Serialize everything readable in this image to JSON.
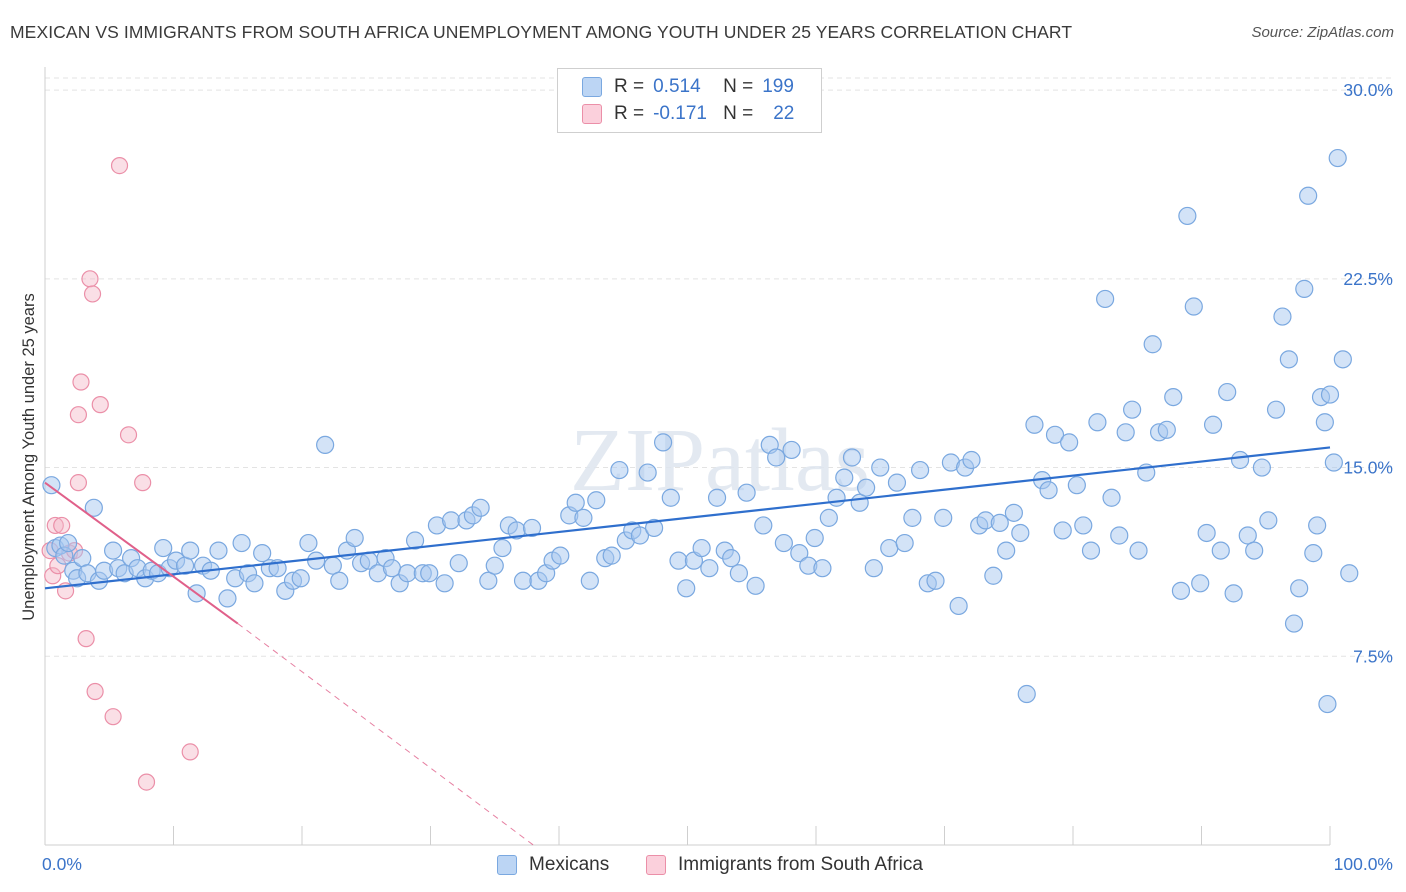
{
  "header": {
    "title": "MEXICAN VS IMMIGRANTS FROM SOUTH AFRICA UNEMPLOYMENT AMONG YOUTH UNDER 25 YEARS CORRELATION CHART",
    "source": "Source: ZipAtlas.com"
  },
  "watermark": "ZIPatlas",
  "legend": {
    "rows": [
      {
        "r_label": "R =",
        "r_value": "0.514",
        "n_label": "N =",
        "n_value": "199",
        "color": "#a8c8f0"
      },
      {
        "r_label": "R =",
        "r_value": "-0.171",
        "n_label": "N =",
        "n_value": "22",
        "color": "#f5b8c8"
      }
    ]
  },
  "bottom_legend": {
    "mexicans": "Mexicans",
    "immigrants": "Immigrants from South Africa"
  },
  "colors": {
    "blue_fill": "#a8c8f0",
    "blue_stroke": "#7aa8e0",
    "blue_line": "#2f6fcd",
    "pink_fill": "#f5b8c8",
    "pink_stroke": "#eb8fa8",
    "pink_line": "#e0608a",
    "tick_label": "#3b74c9",
    "grid": "#e3e3e3"
  },
  "chart_data": {
    "type": "scatter",
    "title": "MEXICAN VS IMMIGRANTS FROM SOUTH AFRICA UNEMPLOYMENT AMONG YOUTH UNDER 25 YEARS CORRELATION CHART",
    "xlabel": "",
    "ylabel": "Unemployment Among Youth under 25 years",
    "xlim": [
      0,
      100
    ],
    "ylim": [
      0,
      30.6
    ],
    "x_tick_labels": [
      "0.0%",
      "100.0%"
    ],
    "y_ticks": [
      7.5,
      15.0,
      22.5,
      30.0
    ],
    "y_tick_labels": [
      "7.5%",
      "15.0%",
      "22.5%",
      "30.0%"
    ],
    "grid": true,
    "legend_position": "top-center",
    "series": [
      {
        "name": "Mexicans",
        "color": "#a8c8f0",
        "trend": {
          "x": [
            0,
            100
          ],
          "y": [
            10.2,
            15.8
          ]
        },
        "points": [
          [
            0.5,
            14.3
          ],
          [
            0.8,
            11.8
          ],
          [
            1.2,
            11.9
          ],
          [
            1.5,
            11.5
          ],
          [
            1.8,
            12.0
          ],
          [
            2.2,
            10.9
          ],
          [
            2.5,
            10.6
          ],
          [
            2.9,
            11.4
          ],
          [
            3.3,
            10.8
          ],
          [
            3.8,
            13.4
          ],
          [
            4.2,
            10.5
          ],
          [
            4.6,
            10.9
          ],
          [
            5.3,
            11.7
          ],
          [
            5.7,
            11.0
          ],
          [
            6.2,
            10.8
          ],
          [
            6.7,
            11.4
          ],
          [
            7.2,
            11.0
          ],
          [
            7.8,
            10.6
          ],
          [
            8.3,
            10.9
          ],
          [
            8.8,
            10.8
          ],
          [
            9.2,
            11.8
          ],
          [
            9.7,
            11.0
          ],
          [
            10.2,
            11.3
          ],
          [
            10.9,
            11.1
          ],
          [
            11.3,
            11.7
          ],
          [
            11.8,
            10.0
          ],
          [
            12.3,
            11.1
          ],
          [
            12.9,
            10.9
          ],
          [
            13.5,
            11.7
          ],
          [
            14.2,
            9.8
          ],
          [
            14.8,
            10.6
          ],
          [
            15.3,
            12.0
          ],
          [
            15.8,
            10.8
          ],
          [
            16.3,
            10.4
          ],
          [
            16.9,
            11.6
          ],
          [
            17.5,
            11.0
          ],
          [
            18.1,
            11.0
          ],
          [
            18.7,
            10.1
          ],
          [
            19.3,
            10.5
          ],
          [
            19.9,
            10.6
          ],
          [
            20.5,
            12.0
          ],
          [
            21.1,
            11.3
          ],
          [
            21.8,
            15.9
          ],
          [
            22.4,
            11.1
          ],
          [
            22.9,
            10.5
          ],
          [
            23.5,
            11.7
          ],
          [
            24.1,
            12.2
          ],
          [
            24.6,
            11.2
          ],
          [
            25.2,
            11.3
          ],
          [
            25.9,
            10.8
          ],
          [
            26.5,
            11.4
          ],
          [
            27.0,
            11.0
          ],
          [
            27.6,
            10.4
          ],
          [
            28.2,
            10.8
          ],
          [
            28.8,
            12.1
          ],
          [
            29.4,
            10.8
          ],
          [
            29.9,
            10.8
          ],
          [
            30.5,
            12.7
          ],
          [
            31.1,
            10.4
          ],
          [
            31.6,
            12.9
          ],
          [
            32.2,
            11.2
          ],
          [
            32.8,
            12.9
          ],
          [
            33.3,
            13.1
          ],
          [
            33.9,
            13.4
          ],
          [
            34.5,
            10.5
          ],
          [
            35.0,
            11.1
          ],
          [
            35.6,
            11.8
          ],
          [
            36.1,
            12.7
          ],
          [
            36.7,
            12.5
          ],
          [
            37.2,
            10.5
          ],
          [
            37.9,
            12.6
          ],
          [
            38.4,
            10.5
          ],
          [
            39.0,
            10.8
          ],
          [
            39.5,
            11.3
          ],
          [
            40.1,
            11.5
          ],
          [
            40.8,
            13.1
          ],
          [
            41.3,
            13.6
          ],
          [
            41.9,
            13.0
          ],
          [
            42.4,
            10.5
          ],
          [
            42.9,
            13.7
          ],
          [
            43.6,
            11.4
          ],
          [
            44.1,
            11.5
          ],
          [
            44.7,
            14.9
          ],
          [
            45.2,
            12.1
          ],
          [
            45.7,
            12.5
          ],
          [
            46.3,
            12.3
          ],
          [
            46.9,
            14.8
          ],
          [
            47.4,
            12.6
          ],
          [
            48.1,
            16.0
          ],
          [
            48.7,
            13.8
          ],
          [
            49.3,
            11.3
          ],
          [
            49.9,
            10.2
          ],
          [
            50.5,
            11.3
          ],
          [
            51.1,
            11.8
          ],
          [
            51.7,
            11.0
          ],
          [
            52.3,
            13.8
          ],
          [
            52.9,
            11.7
          ],
          [
            53.4,
            11.4
          ],
          [
            54.0,
            10.8
          ],
          [
            54.6,
            14.0
          ],
          [
            55.3,
            10.3
          ],
          [
            55.9,
            12.7
          ],
          [
            56.4,
            15.9
          ],
          [
            56.9,
            15.4
          ],
          [
            57.5,
            12.0
          ],
          [
            58.1,
            15.7
          ],
          [
            58.7,
            11.6
          ],
          [
            59.4,
            11.1
          ],
          [
            59.9,
            12.2
          ],
          [
            60.5,
            11.0
          ],
          [
            61.0,
            13.0
          ],
          [
            61.6,
            13.8
          ],
          [
            62.2,
            14.6
          ],
          [
            62.8,
            15.4
          ],
          [
            63.4,
            13.6
          ],
          [
            63.9,
            14.2
          ],
          [
            64.5,
            11.0
          ],
          [
            65.0,
            15.0
          ],
          [
            65.7,
            11.8
          ],
          [
            66.3,
            14.4
          ],
          [
            66.9,
            12.0
          ],
          [
            67.5,
            13.0
          ],
          [
            68.1,
            14.9
          ],
          [
            68.7,
            10.4
          ],
          [
            69.3,
            10.5
          ],
          [
            69.9,
            13.0
          ],
          [
            70.5,
            15.2
          ],
          [
            71.1,
            9.5
          ],
          [
            71.6,
            15.0
          ],
          [
            72.1,
            15.3
          ],
          [
            72.7,
            12.7
          ],
          [
            73.2,
            12.9
          ],
          [
            73.8,
            10.7
          ],
          [
            74.3,
            12.8
          ],
          [
            74.8,
            11.7
          ],
          [
            75.4,
            13.2
          ],
          [
            75.9,
            12.4
          ],
          [
            76.4,
            6.0
          ],
          [
            77.0,
            16.7
          ],
          [
            77.6,
            14.5
          ],
          [
            78.1,
            14.1
          ],
          [
            78.6,
            16.3
          ],
          [
            79.2,
            12.5
          ],
          [
            79.7,
            16.0
          ],
          [
            80.3,
            14.3
          ],
          [
            80.8,
            12.7
          ],
          [
            81.4,
            11.7
          ],
          [
            81.9,
            16.8
          ],
          [
            82.5,
            21.7
          ],
          [
            83.0,
            13.8
          ],
          [
            83.6,
            12.3
          ],
          [
            84.1,
            16.4
          ],
          [
            84.6,
            17.3
          ],
          [
            85.1,
            11.7
          ],
          [
            85.7,
            14.8
          ],
          [
            86.2,
            19.9
          ],
          [
            86.7,
            16.4
          ],
          [
            87.3,
            16.5
          ],
          [
            87.8,
            17.8
          ],
          [
            88.4,
            10.1
          ],
          [
            88.9,
            25.0
          ],
          [
            89.4,
            21.4
          ],
          [
            89.9,
            10.4
          ],
          [
            90.4,
            12.4
          ],
          [
            90.9,
            16.7
          ],
          [
            91.5,
            11.7
          ],
          [
            92.0,
            18.0
          ],
          [
            92.5,
            10.0
          ],
          [
            93.0,
            15.3
          ],
          [
            93.6,
            12.3
          ],
          [
            94.1,
            11.7
          ],
          [
            94.7,
            15.0
          ],
          [
            95.2,
            12.9
          ],
          [
            95.8,
            17.3
          ],
          [
            96.3,
            21.0
          ],
          [
            96.8,
            19.3
          ],
          [
            97.2,
            8.8
          ],
          [
            97.6,
            10.2
          ],
          [
            98.0,
            22.1
          ],
          [
            98.3,
            25.8
          ],
          [
            98.7,
            11.6
          ],
          [
            99.0,
            12.7
          ],
          [
            99.3,
            17.8
          ],
          [
            99.6,
            16.8
          ],
          [
            99.8,
            5.6
          ],
          [
            100.0,
            17.9
          ],
          [
            100.3,
            15.2
          ],
          [
            100.6,
            27.3
          ],
          [
            101.0,
            19.3
          ],
          [
            101.5,
            10.8
          ]
        ]
      },
      {
        "name": "Immigrants from South Africa",
        "color": "#f5b8c8",
        "trend": {
          "x": [
            0,
            15
          ],
          "y": [
            14.4,
            8.8
          ]
        },
        "trend_extension": {
          "x": [
            15,
            38
          ],
          "y": [
            8.8,
            0
          ]
        },
        "points": [
          [
            0.4,
            11.7
          ],
          [
            0.6,
            10.7
          ],
          [
            0.8,
            12.7
          ],
          [
            1.0,
            11.1
          ],
          [
            1.3,
            12.7
          ],
          [
            1.6,
            10.1
          ],
          [
            1.9,
            11.6
          ],
          [
            2.3,
            11.7
          ],
          [
            2.6,
            14.4
          ],
          [
            2.6,
            17.1
          ],
          [
            2.8,
            18.4
          ],
          [
            3.2,
            8.2
          ],
          [
            3.5,
            22.5
          ],
          [
            3.7,
            21.9
          ],
          [
            3.9,
            6.1
          ],
          [
            4.3,
            17.5
          ],
          [
            5.3,
            5.1
          ],
          [
            5.8,
            27.0
          ],
          [
            6.5,
            16.3
          ],
          [
            7.6,
            14.4
          ],
          [
            7.9,
            2.5
          ],
          [
            11.3,
            3.7
          ]
        ]
      }
    ]
  }
}
